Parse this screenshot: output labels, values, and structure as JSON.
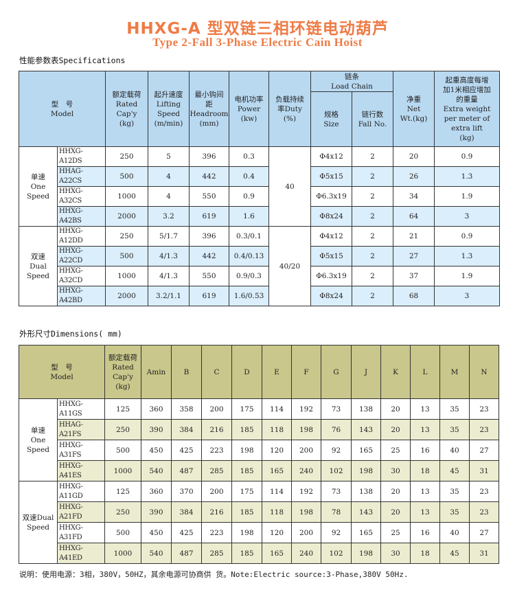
{
  "title_cn": "HHXG-A 型双链三相环链电动葫芦",
  "title_en": "Type 2-Fall 3-Phase Electric Cain Hoist",
  "spec": {
    "section_title": "性能参数表Specifications",
    "headers": {
      "model": "型　号\nModel",
      "cap": "额定载荷\nRated\nCap'y\n(kg)",
      "speed": "起升速度\nLifting\nSpeed\n(m/min)",
      "headroom": "最小钩间\n距\nHeadroom\n(mm)",
      "power": "电机功率\nPower\n(kw)",
      "duty": "负载持续\n率Duty\n(%)",
      "chain": "链条\nLoad Chain",
      "size": "规格\nSize",
      "fall": "链行数\nFall No.",
      "weight": "净重\nNet\nWt.(kg)",
      "extra": "起重高度每增\n加1米相应增加\n的重量\nExtra weight\nper meter of\nextra lift\n(kg)"
    },
    "groups": [
      {
        "label": "单速\nOne\nSpeed",
        "duty": "40",
        "rows": [
          [
            "HHXG-A12DS",
            "250",
            "5",
            "396",
            "0.3",
            "Φ4x12",
            "2",
            "20",
            "0.9"
          ],
          [
            "HHAG-A22CS",
            "500",
            "4",
            "442",
            "0.4",
            "Φ5x15",
            "2",
            "26",
            "1.3"
          ],
          [
            "HHXG-A32CS",
            "1000",
            "4",
            "550",
            "0.9",
            "Φ6.3x19",
            "2",
            "34",
            "1.9"
          ],
          [
            "HHXG-A42BS",
            "2000",
            "3.2",
            "619",
            "1.6",
            "Φ8x24",
            "2",
            "64",
            "3"
          ]
        ]
      },
      {
        "label": "双速\nDual\nSpeed",
        "duty": "40/20",
        "rows": [
          [
            "HHXG-A12DD",
            "250",
            "5/1.7",
            "396",
            "0.3/0.1",
            "Φ4x12",
            "2",
            "21",
            "0.9"
          ],
          [
            "HHXG-A22CD",
            "500",
            "4/1.3",
            "442",
            "0.4/0.13",
            "Φ5x15",
            "2",
            "27",
            "1.3"
          ],
          [
            "HHXG-A32CD",
            "1000",
            "4/1.3",
            "550",
            "0.9/0.3",
            "Φ6.3x19",
            "2",
            "37",
            "1.9"
          ],
          [
            "HHXG-A42BD",
            "2000",
            "3.2/1.1",
            "619",
            "1.6/0.53",
            "Φ8x24",
            "2",
            "68",
            "3"
          ]
        ]
      }
    ]
  },
  "dim": {
    "section_title": "外形尺寸Dimensions( mm)",
    "headers": [
      "型　号\nModel",
      "额定载荷\nRated\nCap'y\n(kg)",
      "Amin",
      "B",
      "C",
      "D",
      "E",
      "F",
      "G",
      "J",
      "K",
      "L",
      "M",
      "N"
    ],
    "groups": [
      {
        "label": "单速\nOne\nSpeed",
        "rows": [
          [
            "HHXG-A11GS",
            "125",
            "360",
            "358",
            "200",
            "175",
            "114",
            "192",
            "73",
            "138",
            "20",
            "13",
            "35",
            "23"
          ],
          [
            "HHAG-A21FS",
            "250",
            "390",
            "384",
            "216",
            "185",
            "118",
            "198",
            "76",
            "143",
            "20",
            "13",
            "35",
            "23"
          ],
          [
            "HHXG-A31FS",
            "500",
            "450",
            "425",
            "223",
            "198",
            "120",
            "200",
            "92",
            "165",
            "25",
            "16",
            "40",
            "27"
          ],
          [
            "HHXG-A41ES",
            "1000",
            "540",
            "487",
            "285",
            "185",
            "165",
            "240",
            "102",
            "198",
            "30",
            "18",
            "45",
            "31"
          ]
        ]
      },
      {
        "label": "双速Dual\nSpeed",
        "rows": [
          [
            "HHXG-A11GD",
            "125",
            "360",
            "370",
            "200",
            "175",
            "114",
            "192",
            "73",
            "138",
            "20",
            "13",
            "35",
            "23"
          ],
          [
            "HHXG-A21FD",
            "250",
            "390",
            "384",
            "216",
            "185",
            "118",
            "198",
            "78",
            "143",
            "20",
            "13",
            "35",
            "23"
          ],
          [
            "HHXG-A31FD",
            "500",
            "450",
            "425",
            "223",
            "198",
            "120",
            "200",
            "92",
            "165",
            "25",
            "16",
            "40",
            "27"
          ],
          [
            "HHXG-A41ED",
            "1000",
            "540",
            "487",
            "285",
            "185",
            "165",
            "240",
            "102",
            "198",
            "30",
            "18",
            "45",
            "31"
          ]
        ]
      }
    ]
  },
  "note": "说明：使用电源：3相，380V，50HZ，其余电源可协商供\n货。Note:Electric source:3-Phase,380V 50Hz.",
  "colors": {
    "title": "#ef7b45",
    "spec_header": "#b9d9f1",
    "spec_alt_row": "#dbeefb",
    "dim_header": "#c9c78b",
    "dim_alt_row": "#ecedd0"
  }
}
